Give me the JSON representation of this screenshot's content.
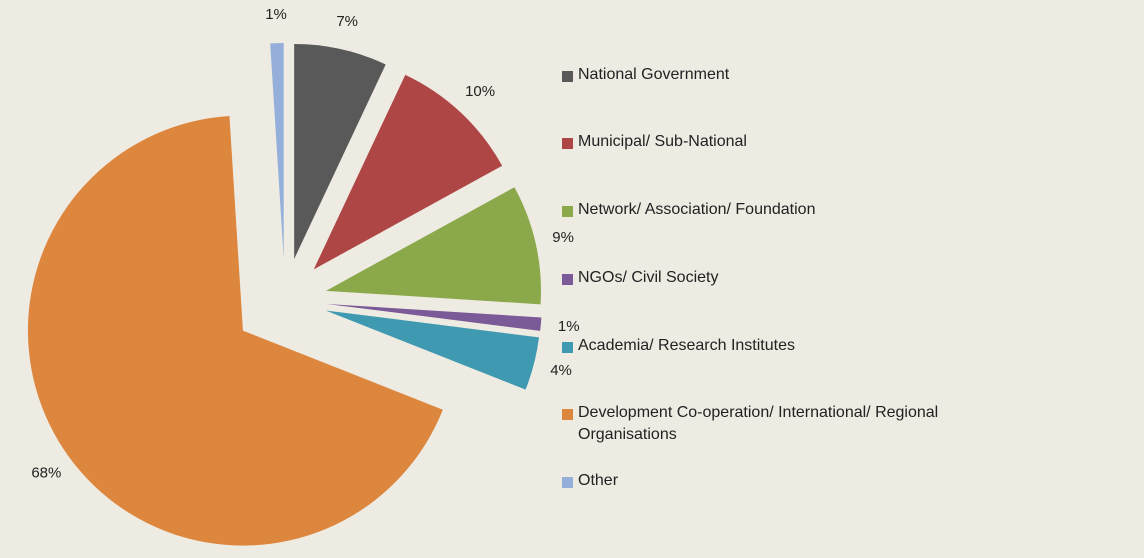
{
  "chart_data": {
    "type": "pie",
    "categories": [
      "National Government",
      "Municipal/ Sub-National",
      "Network/ Association/ Foundation",
      "NGOs/ Civil Society",
      "Academia/ Research Institutes",
      "Development Co-operation/ International/ Regional Organisations",
      "Other"
    ],
    "values": [
      7,
      10,
      9,
      1,
      4,
      68,
      1
    ],
    "value_labels": [
      "7%",
      "10%",
      "9%",
      "1%",
      "4%",
      "68%",
      "1%"
    ],
    "colors": [
      "#595959",
      "#af4646",
      "#8ba94b",
      "#7b5a98",
      "#3f99b1",
      "#dd863e",
      "#94afd9"
    ],
    "legend": "right"
  }
}
